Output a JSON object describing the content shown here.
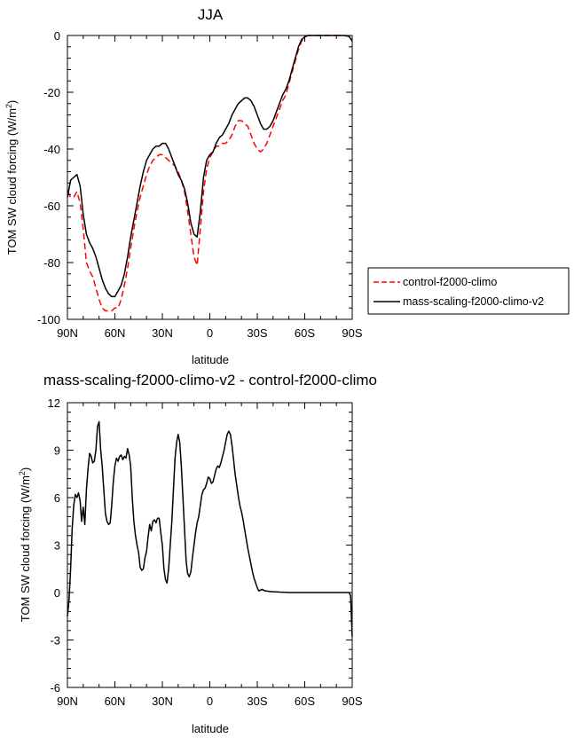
{
  "chart_data": [
    {
      "type": "line",
      "title": "JJA",
      "xlabel": "latitude",
      "ylabel": "TOM SW cloud forcing (W/m²)",
      "ylabel_main": "TOM SW cloud forcing (W/m",
      "ylabel_sup": "2",
      "ylabel_close": ")",
      "xlim": [
        90,
        -90
      ],
      "ylim": [
        -100,
        0
      ],
      "xticks": [
        90,
        60,
        30,
        0,
        -30,
        -60,
        -90
      ],
      "xticklabels": [
        "90N",
        "60N",
        "30N",
        "0",
        "30S",
        "60S",
        "90S"
      ],
      "yticks": [
        0,
        -20,
        -40,
        -60,
        -80,
        -100
      ],
      "yticklabels": [
        "0",
        "-20",
        "-40",
        "-60",
        "-80",
        "-100"
      ],
      "legend_position": "right",
      "series": [
        {
          "name": "control-f2000-climo",
          "color": "#ff0000",
          "dash": "dashed",
          "x": [
            90,
            88,
            86,
            84,
            82,
            80,
            78,
            76,
            74,
            72,
            70,
            68,
            66,
            64,
            62,
            60,
            58,
            56,
            54,
            52,
            50,
            48,
            46,
            44,
            42,
            40,
            38,
            36,
            34,
            32,
            30,
            28,
            26,
            24,
            22,
            20,
            18,
            16,
            14,
            12,
            10,
            8,
            6,
            4,
            2,
            0,
            -2,
            -4,
            -6,
            -8,
            -10,
            -12,
            -14,
            -16,
            -18,
            -20,
            -22,
            -24,
            -26,
            -28,
            -30,
            -32,
            -34,
            -36,
            -38,
            -40,
            -42,
            -44,
            -46,
            -48,
            -50,
            -52,
            -54,
            -56,
            -58,
            -60,
            -62,
            -64,
            -66,
            -68,
            -70,
            -75,
            -80,
            -85,
            -88,
            -90
          ],
          "y": [
            -55,
            -57,
            -57,
            -55,
            -59,
            -68,
            -80,
            -83,
            -85,
            -89,
            -93,
            -96,
            -97,
            -97,
            -97,
            -96,
            -96,
            -93,
            -88,
            -82,
            -75,
            -68,
            -62,
            -57,
            -53,
            -49,
            -46,
            -44,
            -43,
            -42,
            -42,
            -43,
            -44,
            -45,
            -46,
            -48,
            -51,
            -55,
            -62,
            -70,
            -78,
            -81,
            -68,
            -55,
            -47,
            -43,
            -41,
            -39,
            -39,
            -38,
            -38,
            -37,
            -35,
            -32,
            -30,
            -30,
            -31,
            -32,
            -35,
            -38,
            -40,
            -41,
            -40,
            -38,
            -35,
            -32,
            -29,
            -26,
            -23,
            -21,
            -17,
            -13,
            -9,
            -5,
            -2,
            -0.5,
            0,
            0,
            0,
            0,
            0,
            0,
            0,
            0,
            -0.3,
            -2
          ]
        },
        {
          "name": "mass-scaling-f2000-climo-v2",
          "color": "#000000",
          "dash": "solid",
          "x": [
            90,
            88,
            86,
            84,
            82,
            80,
            78,
            76,
            74,
            72,
            70,
            68,
            66,
            64,
            62,
            60,
            58,
            56,
            54,
            52,
            50,
            48,
            46,
            44,
            42,
            40,
            38,
            36,
            34,
            32,
            30,
            28,
            26,
            24,
            22,
            20,
            18,
            16,
            14,
            12,
            10,
            8,
            6,
            4,
            2,
            0,
            -2,
            -4,
            -6,
            -8,
            -10,
            -12,
            -14,
            -16,
            -18,
            -20,
            -22,
            -24,
            -26,
            -28,
            -30,
            -32,
            -34,
            -36,
            -38,
            -40,
            -42,
            -44,
            -46,
            -48,
            -50,
            -52,
            -54,
            -56,
            -58,
            -60,
            -62,
            -64,
            -66,
            -68,
            -70,
            -75,
            -80,
            -85,
            -88,
            -90
          ],
          "y": [
            -57,
            -51,
            -50,
            -49,
            -53,
            -63,
            -70,
            -73,
            -75,
            -78,
            -82,
            -86,
            -89,
            -91,
            -92,
            -92,
            -90,
            -88,
            -84,
            -78,
            -71,
            -65,
            -59,
            -53,
            -48,
            -44,
            -42,
            -40,
            -39,
            -39,
            -38,
            -38,
            -40,
            -43,
            -46,
            -49,
            -51,
            -54,
            -59,
            -66,
            -70,
            -71,
            -62,
            -50,
            -44,
            -42,
            -41,
            -38,
            -36,
            -35,
            -33,
            -31,
            -28,
            -26,
            -24,
            -23,
            -22,
            -22,
            -23,
            -25,
            -28,
            -31,
            -33,
            -33,
            -32,
            -30,
            -27,
            -24,
            -21,
            -19,
            -16,
            -12,
            -8,
            -4,
            -1.5,
            -0.5,
            0,
            0,
            0,
            0,
            0,
            0,
            0,
            0,
            -0.3,
            -2
          ]
        }
      ]
    },
    {
      "type": "line",
      "title": "mass-scaling-f2000-climo-v2 - control-f2000-climo",
      "xlabel": "latitude",
      "ylabel": "TOM SW cloud forcing (W/m²)",
      "ylabel_main": "TOM SW cloud forcing (W/m",
      "ylabel_sup": "2",
      "ylabel_close": ")",
      "xlim": [
        90,
        -90
      ],
      "ylim": [
        -6,
        12
      ],
      "xticks": [
        90,
        60,
        30,
        0,
        -30,
        -60,
        -90
      ],
      "xticklabels": [
        "90N",
        "60N",
        "30N",
        "0",
        "30S",
        "60S",
        "90S"
      ],
      "yticks": [
        12,
        9,
        6,
        3,
        0,
        -3,
        -6
      ],
      "yticklabels": [
        "12",
        "9",
        "6",
        "3",
        "0",
        "-3",
        "-6"
      ],
      "series": [
        {
          "name": "mass-scaling-f2000-climo-v2 - control-f2000-climo",
          "color": "#000000",
          "dash": "solid",
          "x": [
            90,
            89,
            88,
            87,
            86,
            85,
            84,
            83,
            82,
            81,
            80,
            79,
            78,
            77,
            76,
            75,
            74,
            73,
            72,
            71,
            70,
            69,
            68,
            67,
            66,
            65,
            64,
            63,
            62,
            61,
            60,
            59,
            58,
            57,
            56,
            55,
            54,
            53,
            52,
            51,
            50,
            49,
            48,
            47,
            46,
            45,
            44,
            43,
            42,
            41,
            40,
            39,
            38,
            37,
            36,
            35,
            34,
            33,
            32,
            31,
            30,
            29,
            28,
            27,
            26,
            25,
            24,
            23,
            22,
            21,
            20,
            19,
            18,
            17,
            16,
            15,
            14,
            13,
            12,
            11,
            10,
            9,
            8,
            7,
            6,
            5,
            4,
            3,
            2,
            1,
            0,
            -1,
            -2,
            -3,
            -4,
            -5,
            -6,
            -7,
            -8,
            -9,
            -10,
            -11,
            -12,
            -13,
            -14,
            -15,
            -16,
            -17,
            -18,
            -19,
            -20,
            -21,
            -22,
            -23,
            -24,
            -25,
            -26,
            -27,
            -28,
            -29,
            -30,
            -31,
            -32,
            -33,
            -34,
            -35,
            -36,
            -37,
            -38,
            -39,
            -40,
            -42,
            -44,
            -46,
            -48,
            -50,
            -52,
            -54,
            -56,
            -58,
            -60,
            -62,
            -64,
            -66,
            -68,
            -70,
            -75,
            -80,
            -85,
            -88,
            -89,
            -90
          ],
          "y": [
            -1.5,
            -0.5,
            1.5,
            4.0,
            5.5,
            6.2,
            6.0,
            6.3,
            5.8,
            4.5,
            5.4,
            4.3,
            6.5,
            7.8,
            8.8,
            8.6,
            8.2,
            8.3,
            9.0,
            10.5,
            10.8,
            9.0,
            8.0,
            6.5,
            5.0,
            4.5,
            4.3,
            4.4,
            5.5,
            7.0,
            8.0,
            8.5,
            8.3,
            8.6,
            8.7,
            8.4,
            8.6,
            8.5,
            9.1,
            8.7,
            8.0,
            6.0,
            4.5,
            3.6,
            3.0,
            2.5,
            1.6,
            1.4,
            1.5,
            2.2,
            2.6,
            3.5,
            4.3,
            3.9,
            4.5,
            4.6,
            4.4,
            4.7,
            4.7,
            3.8,
            3.0,
            1.5,
            0.8,
            0.6,
            1.5,
            3.0,
            4.5,
            6.5,
            8.5,
            9.5,
            10.0,
            9.5,
            8.0,
            6.0,
            4.0,
            2.0,
            1.2,
            1.0,
            1.3,
            2.2,
            3.0,
            3.8,
            4.4,
            4.8,
            5.5,
            6.2,
            6.5,
            6.6,
            6.9,
            7.3,
            7.2,
            6.9,
            7.0,
            7.4,
            7.8,
            8.0,
            7.9,
            8.2,
            8.6,
            9.0,
            9.5,
            10.0,
            10.2,
            10.0,
            9.3,
            8.4,
            7.5,
            6.8,
            6.1,
            5.5,
            5.1,
            4.6,
            4.0,
            3.4,
            2.8,
            2.3,
            1.8,
            1.3,
            0.9,
            0.6,
            0.3,
            0.1,
            0.15,
            0.2,
            0.15,
            0.1,
            0.1,
            0.08,
            0.06,
            0.05,
            0.05,
            0.04,
            0.03,
            0.02,
            0.01,
            0.0,
            0.0,
            0.0,
            0.0,
            0.0,
            0.0,
            0.0,
            0.0,
            0.0,
            0.0,
            0.0,
            0.0,
            0.0,
            0.0,
            0.0,
            -0.2,
            -2.8
          ]
        }
      ]
    }
  ]
}
